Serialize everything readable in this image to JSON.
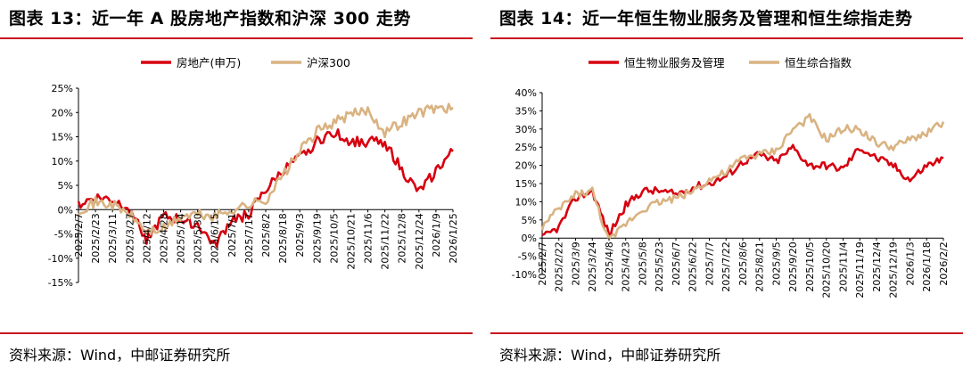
{
  "charts": [
    {
      "title": "图表 13：近一年 A 股房地产指数和沪深 300 走势",
      "source": "资料来源：Wind，中邮证券研究所"
    },
    {
      "title": "图表 14：近一年恒生物业服务及管理和恒生综指走势",
      "source": "资料来源：Wind，中邮证券研究所"
    }
  ],
  "chart_data": [
    {
      "type": "line",
      "title": "图表 13：近一年 A 股房地产指数和沪深 300 走势",
      "x": [
        "2025/2/7",
        "2025/2/23",
        "2025/3/11",
        "2025/3/27",
        "2025/4/12",
        "2025/4/28",
        "2025/5/14",
        "2025/5/30",
        "2025/6/15",
        "2025/7/1",
        "2025/7/17",
        "2025/8/2",
        "2025/8/18",
        "2025/9/3",
        "2025/9/19",
        "2025/10/5",
        "2025/10/21",
        "2025/11/6",
        "2025/11/22",
        "2025/12/8",
        "2025/12/24",
        "2026/1/9",
        "2026/1/25"
      ],
      "series": [
        {
          "name": "房地产(申万)",
          "color": "#d7000f",
          "values": [
            1,
            2.5,
            2,
            0.5,
            -6,
            -1.5,
            -2,
            -3,
            -7.5,
            -2,
            -1,
            4,
            8,
            10.5,
            14,
            16,
            14,
            14,
            14,
            8,
            3.5,
            8,
            12
          ]
        },
        {
          "name": "沪深300",
          "color": "#d9b382",
          "values": [
            0,
            1.5,
            1,
            -1,
            -4.5,
            -4,
            -1.5,
            -1,
            -1.5,
            0,
            1,
            2,
            7,
            12,
            16,
            18,
            19.5,
            20.5,
            16,
            18,
            20,
            21,
            21
          ]
        }
      ],
      "ylim": [
        -15,
        25
      ],
      "yticks": [
        "25%",
        "20%",
        "15%",
        "10%",
        "5%",
        "0%",
        "-5%",
        "-10%",
        "-15%"
      ],
      "legend": "top-center",
      "grid": false
    },
    {
      "type": "line",
      "title": "图表 14：近一年恒生物业服务及管理和恒生综指走势",
      "x": [
        "2025/2/7",
        "2025/2/22",
        "2025/3/9",
        "2025/3/24",
        "2025/4/8",
        "2025/4/23",
        "2025/5/8",
        "2025/5/23",
        "2025/6/7",
        "2025/6/22",
        "2025/7/7",
        "2025/7/22",
        "2025/8/6",
        "2025/8/21",
        "2025/9/5",
        "2025/9/20",
        "2025/10/5",
        "2025/10/20",
        "2025/11/4",
        "2025/11/19",
        "2025/12/4",
        "2025/12/19",
        "2026/1/3",
        "2026/1/18",
        "2026/2/2"
      ],
      "series": [
        {
          "name": "恒生物业服务及管理",
          "color": "#d7000f",
          "values": [
            0,
            3,
            11,
            13,
            1,
            9,
            13,
            13,
            12,
            14,
            15,
            17,
            21,
            23,
            21,
            25,
            20,
            20,
            19,
            25,
            22,
            20,
            16,
            20,
            22
          ]
        },
        {
          "name": "恒生综合指数",
          "color": "#d9b382",
          "values": [
            3,
            8,
            12,
            13,
            -1,
            4,
            8,
            10,
            11,
            13,
            16,
            18,
            22,
            23,
            24,
            30,
            33,
            27,
            30,
            30,
            26,
            25,
            27,
            29,
            32
          ]
        }
      ],
      "ylim": [
        -10,
        40
      ],
      "yticks": [
        "40%",
        "35%",
        "30%",
        "25%",
        "20%",
        "15%",
        "10%",
        "5%",
        "0%",
        "-5%",
        "-10%"
      ],
      "legend": "top-center",
      "grid": false
    }
  ]
}
